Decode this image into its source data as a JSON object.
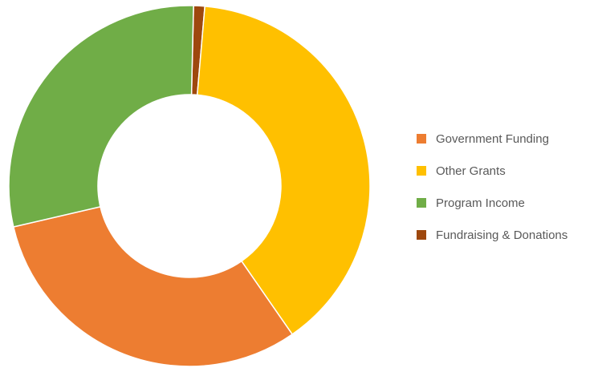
{
  "chart_data": {
    "type": "pie",
    "variant": "donut",
    "title": "",
    "legend_position": "right",
    "slices": [
      {
        "name": "Government Funding",
        "value": 31,
        "color": "#ED7D31"
      },
      {
        "name": "Other Grants",
        "value": 39,
        "color": "#FFC000"
      },
      {
        "name": "Program Income",
        "value": 29,
        "color": "#70AD47"
      },
      {
        "name": "Fundraising & Donations",
        "value": 1,
        "color": "#9E480E"
      }
    ],
    "draw_order": [
      "Fundraising & Donations",
      "Other Grants",
      "Government Funding",
      "Program Income"
    ]
  }
}
